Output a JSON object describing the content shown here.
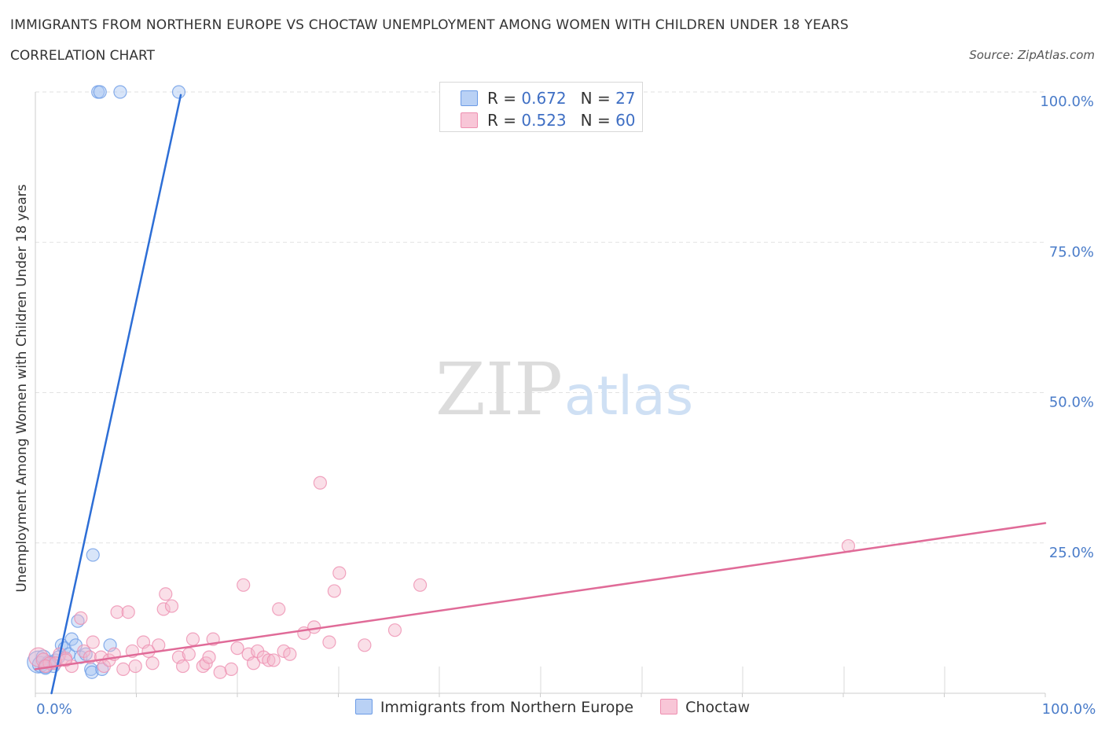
{
  "chart_data": {
    "type": "scatter",
    "title": "IMMIGRANTS FROM NORTHERN EUROPE VS CHOCTAW UNEMPLOYMENT AMONG WOMEN WITH CHILDREN UNDER 18 YEARS",
    "subtitle": "CORRELATION CHART",
    "source": "Source: ZipAtlas.com",
    "xlabel": "",
    "ylabel": "Unemployment Among Women with Children Under 18 years",
    "xlim": [
      0,
      100
    ],
    "ylim": [
      0,
      100
    ],
    "x_tick_labels": {
      "left": "0.0%",
      "right": "100.0%"
    },
    "y_tick_labels": [
      "100.0%",
      "75.0%",
      "50.0%",
      "25.0%"
    ],
    "y_tick_values": [
      100,
      75,
      50,
      25
    ],
    "watermark": {
      "zip": "ZIP",
      "atlas": "atlas"
    },
    "legend": {
      "r_label": "R = ",
      "n_label": "N = ",
      "entries": [
        {
          "name": "Immigrants from Northern Europe",
          "R": "0.672",
          "N": "27"
        },
        {
          "name": "Choctaw",
          "R": "0.523",
          "N": "60"
        }
      ]
    },
    "series": [
      {
        "name": "Immigrants from Northern Europe",
        "color": "#6b9be6",
        "fill": "#a9c6f2",
        "line_color": "#2d6ed6",
        "trend": {
          "x": [
            1.6,
            14.4
          ],
          "y": [
            0,
            99.5
          ]
        },
        "points": [
          {
            "x": 0.3,
            "y": 5.2,
            "s": 14
          },
          {
            "x": 0.5,
            "y": 4.8,
            "s": 10
          },
          {
            "x": 0.8,
            "y": 6.0,
            "s": 9
          },
          {
            "x": 1.0,
            "y": 4.5,
            "s": 9
          },
          {
            "x": 1.3,
            "y": 5.2,
            "s": 8
          },
          {
            "x": 1.6,
            "y": 5.0,
            "s": 8
          },
          {
            "x": 1.8,
            "y": 4.5,
            "s": 8
          },
          {
            "x": 2.0,
            "y": 5.5,
            "s": 8
          },
          {
            "x": 2.3,
            "y": 6.0,
            "s": 8
          },
          {
            "x": 2.6,
            "y": 8.0,
            "s": 8
          },
          {
            "x": 2.9,
            "y": 7.5,
            "s": 8
          },
          {
            "x": 3.3,
            "y": 6.5,
            "s": 8
          },
          {
            "x": 3.6,
            "y": 9.0,
            "s": 8
          },
          {
            "x": 4.0,
            "y": 8.0,
            "s": 8
          },
          {
            "x": 4.2,
            "y": 12.0,
            "s": 8
          },
          {
            "x": 4.5,
            "y": 6.0,
            "s": 8
          },
          {
            "x": 5.0,
            "y": 6.5,
            "s": 8
          },
          {
            "x": 5.5,
            "y": 4.0,
            "s": 8
          },
          {
            "x": 5.6,
            "y": 3.5,
            "s": 8
          },
          {
            "x": 5.7,
            "y": 23.0,
            "s": 8
          },
          {
            "x": 6.6,
            "y": 4.0,
            "s": 8
          },
          {
            "x": 7.4,
            "y": 8.0,
            "s": 8
          },
          {
            "x": 6.2,
            "y": 100.0,
            "s": 8
          },
          {
            "x": 6.4,
            "y": 100.0,
            "s": 8
          },
          {
            "x": 8.4,
            "y": 100.0,
            "s": 8
          },
          {
            "x": 14.2,
            "y": 100.0,
            "s": 8
          },
          {
            "x": 1.0,
            "y": 4.2,
            "s": 8
          }
        ]
      },
      {
        "name": "Choctaw",
        "color": "#ee8fb0",
        "fill": "#f5b8cd",
        "line_color": "#e06b98",
        "trend": {
          "x": [
            0,
            100
          ],
          "y": [
            4.0,
            28.3
          ]
        },
        "points": [
          {
            "x": 0.3,
            "y": 6.0,
            "s": 12
          },
          {
            "x": 0.8,
            "y": 5.5,
            "s": 9
          },
          {
            "x": 1.4,
            "y": 5.0,
            "s": 8
          },
          {
            "x": 2.4,
            "y": 6.5,
            "s": 8
          },
          {
            "x": 3.0,
            "y": 5.8,
            "s": 8
          },
          {
            "x": 3.6,
            "y": 4.5,
            "s": 8
          },
          {
            "x": 4.5,
            "y": 12.5,
            "s": 8
          },
          {
            "x": 4.8,
            "y": 7.0,
            "s": 8
          },
          {
            "x": 5.4,
            "y": 6.0,
            "s": 8
          },
          {
            "x": 5.7,
            "y": 8.5,
            "s": 8
          },
          {
            "x": 6.5,
            "y": 6.0,
            "s": 8
          },
          {
            "x": 6.8,
            "y": 4.5,
            "s": 8
          },
          {
            "x": 7.3,
            "y": 5.5,
            "s": 8
          },
          {
            "x": 7.8,
            "y": 6.5,
            "s": 8
          },
          {
            "x": 8.1,
            "y": 13.5,
            "s": 8
          },
          {
            "x": 8.7,
            "y": 4.0,
            "s": 8
          },
          {
            "x": 9.2,
            "y": 13.5,
            "s": 8
          },
          {
            "x": 9.6,
            "y": 7.0,
            "s": 8
          },
          {
            "x": 9.9,
            "y": 4.5,
            "s": 8
          },
          {
            "x": 10.7,
            "y": 8.5,
            "s": 8
          },
          {
            "x": 11.2,
            "y": 7.0,
            "s": 8
          },
          {
            "x": 11.6,
            "y": 5.0,
            "s": 8
          },
          {
            "x": 12.2,
            "y": 8.0,
            "s": 8
          },
          {
            "x": 12.7,
            "y": 14.0,
            "s": 8
          },
          {
            "x": 12.9,
            "y": 16.5,
            "s": 8
          },
          {
            "x": 13.5,
            "y": 14.5,
            "s": 8
          },
          {
            "x": 14.2,
            "y": 6.0,
            "s": 8
          },
          {
            "x": 14.6,
            "y": 4.5,
            "s": 8
          },
          {
            "x": 15.2,
            "y": 6.5,
            "s": 8
          },
          {
            "x": 15.6,
            "y": 9.0,
            "s": 8
          },
          {
            "x": 16.6,
            "y": 4.5,
            "s": 8
          },
          {
            "x": 16.9,
            "y": 5.0,
            "s": 8
          },
          {
            "x": 17.2,
            "y": 6.0,
            "s": 8
          },
          {
            "x": 17.6,
            "y": 9.0,
            "s": 8
          },
          {
            "x": 18.3,
            "y": 3.5,
            "s": 8
          },
          {
            "x": 19.4,
            "y": 4.0,
            "s": 8
          },
          {
            "x": 20.0,
            "y": 7.5,
            "s": 8
          },
          {
            "x": 20.6,
            "y": 18.0,
            "s": 8
          },
          {
            "x": 21.1,
            "y": 6.5,
            "s": 8
          },
          {
            "x": 21.6,
            "y": 5.0,
            "s": 8
          },
          {
            "x": 22.0,
            "y": 7.0,
            "s": 8
          },
          {
            "x": 22.6,
            "y": 6.0,
            "s": 8
          },
          {
            "x": 23.1,
            "y": 5.5,
            "s": 8
          },
          {
            "x": 23.6,
            "y": 5.5,
            "s": 8
          },
          {
            "x": 24.1,
            "y": 14.0,
            "s": 8
          },
          {
            "x": 24.6,
            "y": 7.0,
            "s": 8
          },
          {
            "x": 25.2,
            "y": 6.5,
            "s": 8
          },
          {
            "x": 26.6,
            "y": 10.0,
            "s": 8
          },
          {
            "x": 27.6,
            "y": 11.0,
            "s": 8
          },
          {
            "x": 28.2,
            "y": 35.0,
            "s": 8
          },
          {
            "x": 29.1,
            "y": 8.5,
            "s": 8
          },
          {
            "x": 29.6,
            "y": 17.0,
            "s": 8
          },
          {
            "x": 30.1,
            "y": 20.0,
            "s": 8
          },
          {
            "x": 32.6,
            "y": 8.0,
            "s": 8
          },
          {
            "x": 35.6,
            "y": 10.5,
            "s": 8
          },
          {
            "x": 38.1,
            "y": 18.0,
            "s": 8
          },
          {
            "x": 80.5,
            "y": 24.5,
            "s": 8
          },
          {
            "x": 1.0,
            "y": 4.5,
            "s": 8
          },
          {
            "x": 2.0,
            "y": 5.0,
            "s": 8
          },
          {
            "x": 3.0,
            "y": 5.5,
            "s": 8
          }
        ]
      }
    ]
  }
}
